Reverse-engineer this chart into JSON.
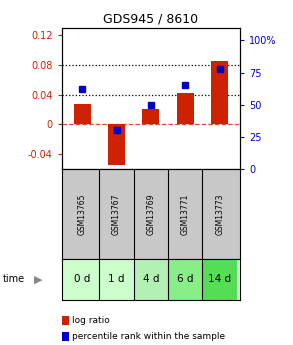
{
  "title": "GDS945 / 8610",
  "samples": [
    "GSM13765",
    "GSM13767",
    "GSM13769",
    "GSM13771",
    "GSM13773"
  ],
  "time_labels": [
    "0 d",
    "1 d",
    "4 d",
    "6 d",
    "14 d"
  ],
  "log_ratio": [
    0.028,
    -0.055,
    0.02,
    0.042,
    0.085
  ],
  "percentile_rank": [
    62,
    30,
    50,
    65,
    78
  ],
  "bar_color": "#cc2200",
  "dot_color": "#0000cc",
  "ylim_left": [
    -0.06,
    0.13
  ],
  "ylim_right": [
    0,
    110
  ],
  "yticks_left": [
    -0.04,
    0,
    0.04,
    0.08,
    0.12
  ],
  "ytick_labels_left": [
    "-0.04",
    "0",
    "0.04",
    "0.08",
    "0.12"
  ],
  "yticks_right": [
    0,
    25,
    50,
    75,
    100
  ],
  "ytick_labels_right": [
    "0",
    "25",
    "50",
    "75",
    "100%"
  ],
  "hlines": [
    0.04,
    0.08
  ],
  "zero_line": 0,
  "gsm_bg_color": "#c8c8c8",
  "time_bg_colors": [
    "#ccffcc",
    "#ccffcc",
    "#b3f0b3",
    "#88ee88",
    "#55dd55"
  ],
  "legend_items": [
    "log ratio",
    "percentile rank within the sample"
  ],
  "legend_colors": [
    "#cc2200",
    "#0000cc"
  ],
  "bar_width": 0.5
}
